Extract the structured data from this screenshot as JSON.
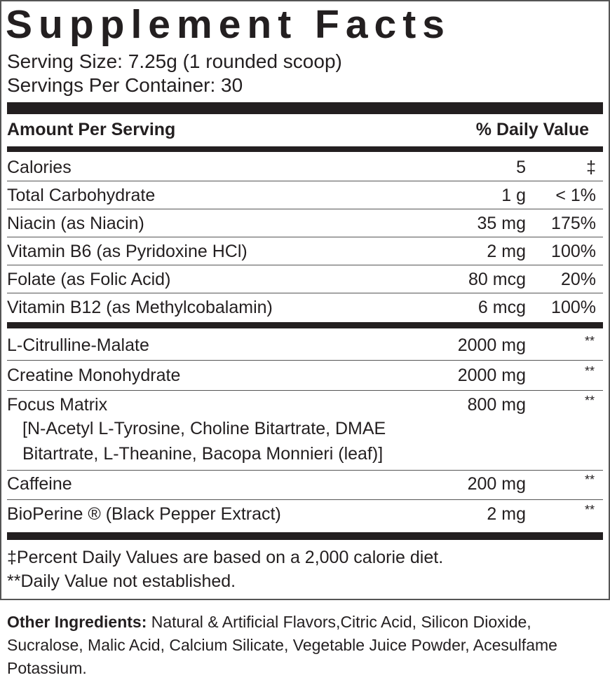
{
  "title": "Supplement Facts",
  "serving_size": "Serving Size: 7.25g (1 rounded scoop)",
  "servings_per_container": "Servings Per Container: 30",
  "header": {
    "amount": "Amount Per Serving",
    "dv": "% Daily Value"
  },
  "vitamins": [
    {
      "name": "Calories",
      "amount": "5",
      "dv": "‡"
    },
    {
      "name": "Total Carbohydrate",
      "amount": "1 g",
      "dv": "< 1%"
    },
    {
      "name": "Niacin (as Niacin)",
      "amount": "35 mg",
      "dv": "175%"
    },
    {
      "name": "Vitamin B6 (as Pyridoxine HCl)",
      "amount": "2 mg",
      "dv": "100%"
    },
    {
      "name": "Folate (as Folic Acid)",
      "amount": "80 mcg",
      "dv": "20%"
    },
    {
      "name": "Vitamin B12 (as Methylcobalamin)",
      "amount": "6 mcg",
      "dv": "100%"
    }
  ],
  "others": [
    {
      "name": "L-Citrulline-Malate",
      "amount": "2000 mg",
      "dv": "**"
    },
    {
      "name": "Creatine Monohydrate",
      "amount": "2000 mg",
      "dv": "**"
    },
    {
      "name": "Focus Matrix",
      "amount": "800 mg",
      "dv": "**",
      "sub1": "[N-Acetyl L-Tyrosine, Choline Bitartrate, DMAE",
      "sub2": "Bitartrate, L-Theanine, Bacopa Monnieri (leaf)]"
    },
    {
      "name": "Caffeine",
      "amount": "200 mg",
      "dv": "**"
    },
    {
      "name": "BioPerine ® (Black Pepper Extract)",
      "amount": "2 mg",
      "dv": "**"
    }
  ],
  "footnotes": [
    "‡Percent Daily Values are based on a 2,000 calorie diet.",
    "**Daily Value not established."
  ],
  "other_ingredients": {
    "label": "Other Ingredients:",
    "text": " Natural & Artificial Flavors,Citric Acid, Silicon Dioxide, Sucralose, Malic Acid, Calcium Silicate, Vegetable Juice Powder, Acesulfame Potassium."
  }
}
